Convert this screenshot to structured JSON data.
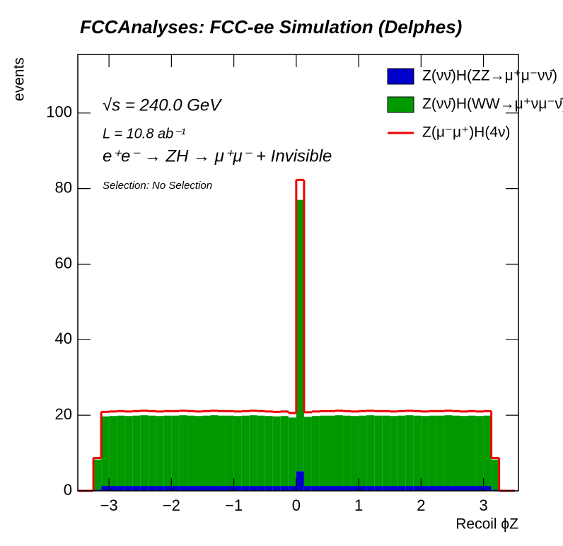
{
  "chart_data": {
    "type": "histogram",
    "title": "FCCAnalyses: FCC-ee Simulation (Delphes)",
    "x_label": "Recoil ϕZ",
    "y_label": "events",
    "annotations": [
      "√s = 240.0 GeV",
      "L = 10.8 ab⁻¹",
      "e⁺e⁻ → ZH → μ⁺μ⁻ + Invisible",
      "Selection: No Selection"
    ],
    "stacked": true,
    "bins": [
      -3.5,
      -3.375,
      -3.25,
      -3.125,
      -3.0,
      -2.875,
      -2.75,
      -2.625,
      -2.5,
      -2.375,
      -2.25,
      -2.125,
      -2.0,
      -1.875,
      -1.75,
      -1.625,
      -1.5,
      -1.375,
      -1.25,
      -1.125,
      -1.0,
      -0.875,
      -0.75,
      -0.625,
      -0.5,
      -0.375,
      -0.25,
      -0.125,
      0.0,
      0.125,
      0.25,
      0.375,
      0.5,
      0.625,
      0.75,
      0.875,
      1.0,
      1.125,
      1.25,
      1.375,
      1.5,
      1.625,
      1.75,
      1.875,
      2.0,
      2.125,
      2.25,
      2.375,
      2.5,
      2.625,
      2.75,
      2.875,
      3.0,
      3.125,
      3.25,
      3.375,
      3.5
    ],
    "series": [
      {
        "name": "Z(νν̄)H(ZZ→μ⁺μ⁻νν̄)",
        "color": "#0000cc",
        "style": "fill",
        "values": [
          0,
          0,
          0.3,
          1.3,
          1.3,
          1.3,
          1.3,
          1.3,
          1.3,
          1.3,
          1.3,
          1.3,
          1.3,
          1.3,
          1.3,
          1.3,
          1.3,
          1.3,
          1.3,
          1.3,
          1.3,
          1.3,
          1.3,
          1.3,
          1.3,
          1.3,
          1.3,
          1.3,
          5.2,
          1.3,
          1.3,
          1.3,
          1.3,
          1.3,
          1.3,
          1.3,
          1.3,
          1.3,
          1.3,
          1.3,
          1.3,
          1.3,
          1.3,
          1.3,
          1.3,
          1.3,
          1.3,
          1.3,
          1.3,
          1.3,
          1.3,
          1.3,
          1.3,
          0.3,
          0,
          0
        ]
      },
      {
        "name": "Z(νν̄)H(WW→μ⁺νμ⁻ν̄)",
        "color": "#009900",
        "style": "fill",
        "values": [
          0,
          0,
          8.0,
          18.4,
          18.5,
          18.6,
          18.5,
          18.6,
          18.7,
          18.6,
          18.5,
          18.6,
          18.6,
          18.7,
          18.6,
          18.5,
          18.6,
          18.7,
          18.6,
          18.6,
          18.5,
          18.6,
          18.7,
          18.6,
          18.5,
          18.4,
          18.5,
          18.1,
          71.8,
          18.3,
          18.5,
          18.6,
          18.6,
          18.7,
          18.6,
          18.5,
          18.6,
          18.7,
          18.6,
          18.6,
          18.5,
          18.6,
          18.7,
          18.6,
          18.5,
          18.6,
          18.6,
          18.7,
          18.6,
          18.5,
          18.6,
          18.5,
          18.6,
          8.0,
          0,
          0
        ]
      },
      {
        "name": "Z(μ⁻μ⁺)H(4ν)",
        "color": "#ee0000",
        "style": "line",
        "values": [
          0,
          0,
          0.4,
          1.2,
          1.2,
          1.2,
          1.2,
          1.2,
          1.2,
          1.2,
          1.2,
          1.2,
          1.2,
          1.2,
          1.2,
          1.2,
          1.2,
          1.2,
          1.2,
          1.2,
          1.2,
          1.2,
          1.2,
          1.2,
          1.2,
          1.2,
          1.2,
          1.2,
          5.3,
          1.2,
          1.2,
          1.2,
          1.2,
          1.2,
          1.2,
          1.2,
          1.2,
          1.2,
          1.2,
          1.2,
          1.2,
          1.2,
          1.2,
          1.2,
          1.2,
          1.2,
          1.2,
          1.2,
          1.2,
          1.2,
          1.2,
          1.2,
          1.2,
          0.4,
          0,
          0
        ]
      }
    ],
    "xlim": [
      -3.5,
      3.56
    ],
    "ylim": [
      0,
      115.5
    ],
    "xticks": [
      {
        "value": -3,
        "label": "−3"
      },
      {
        "value": -2,
        "label": "−2"
      },
      {
        "value": -1,
        "label": "−1"
      },
      0,
      1,
      2,
      3
    ],
    "yticks": [
      0,
      20,
      40,
      60,
      80,
      100
    ],
    "legend": "top-right"
  }
}
